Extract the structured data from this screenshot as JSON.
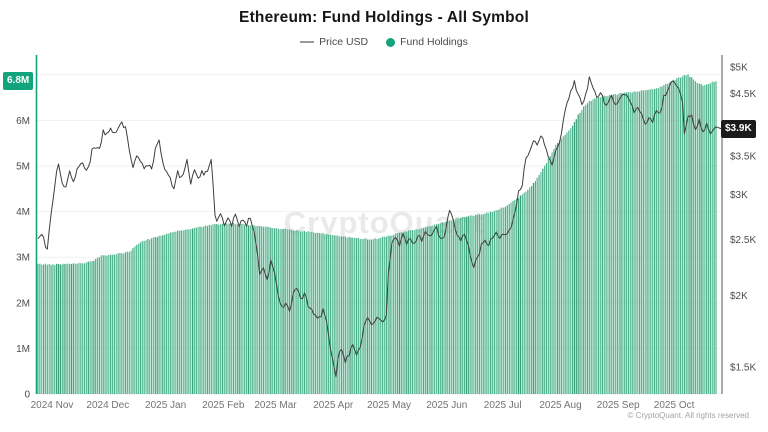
{
  "title": "Ethereum: Fund Holdings - All Symbol",
  "legend": [
    {
      "label": "Price USD",
      "type": "line",
      "color": "#999999"
    },
    {
      "label": "Fund Holdings",
      "type": "dot",
      "color": "#12a57c"
    }
  ],
  "watermark": "CryptoQuant",
  "attribution": "© CryptoQuant. All rights reserved",
  "badges": {
    "holdings": {
      "text": "6.8M",
      "color": "#12a57c"
    },
    "price": {
      "text": "$3.9K",
      "color": "#1b1b1b"
    }
  },
  "chart_data": {
    "type": "combo",
    "title": "Ethereum: Fund Holdings - All Symbol",
    "days": 365,
    "x_labels": [
      {
        "label": "2024 Nov",
        "start_day": 0
      },
      {
        "label": "2024 Dec",
        "start_day": 30
      },
      {
        "label": "2025 Jan",
        "start_day": 61
      },
      {
        "label": "2025 Feb",
        "start_day": 92
      },
      {
        "label": "2025 Mar",
        "start_day": 120
      },
      {
        "label": "2025 Apr",
        "start_day": 151
      },
      {
        "label": "2025 May",
        "start_day": 181
      },
      {
        "label": "2025 Jun",
        "start_day": 212
      },
      {
        "label": "2025 Jul",
        "start_day": 242
      },
      {
        "label": "2025 Aug",
        "start_day": 273
      },
      {
        "label": "2025 Sep",
        "start_day": 304
      },
      {
        "label": "2025 Oct",
        "start_day": 334
      }
    ],
    "left_axis": {
      "name": "Fund Holdings (ETH)",
      "scale": "linear",
      "unit": "M",
      "ticks": [
        {
          "label": "6M",
          "value": 6
        },
        {
          "label": "5M",
          "value": 5
        },
        {
          "label": "4M",
          "value": 4
        },
        {
          "label": "3M",
          "value": 3
        },
        {
          "label": "2M",
          "value": 2
        },
        {
          "label": "1M",
          "value": 1
        },
        {
          "label": "0",
          "value": 0
        }
      ],
      "gridline_values": [
        7,
        6,
        5,
        4,
        3,
        2,
        1,
        0
      ],
      "range": [
        0,
        7.4
      ]
    },
    "right_axis": {
      "name": "Price USD",
      "scale": "log",
      "unit": "$K",
      "ticks": [
        {
          "label": "$5K",
          "k": 5
        },
        {
          "label": "$4.5K",
          "k": 4.5
        },
        {
          "label": "$3.5K",
          "k": 3.5
        },
        {
          "label": "$3K",
          "k": 3
        },
        {
          "label": "$2.5K",
          "k": 2.5
        },
        {
          "label": "$2K",
          "k": 2
        },
        {
          "label": "$1.5K",
          "k": 1.5
        }
      ],
      "range_k": [
        1.38,
        5.4
      ]
    },
    "series": [
      {
        "name": "Fund Holdings",
        "type": "bar",
        "axis": "left",
        "unit": "M ETH",
        "color": "#56b793",
        "current": "6.8M",
        "points": [
          [
            0,
            2.85
          ],
          [
            8,
            2.84
          ],
          [
            16,
            2.86
          ],
          [
            24,
            2.87
          ],
          [
            29,
            2.9
          ],
          [
            31,
            2.97
          ],
          [
            34,
            3.03
          ],
          [
            38,
            3.05
          ],
          [
            42,
            3.07
          ],
          [
            46,
            3.09
          ],
          [
            50,
            3.14
          ],
          [
            53,
            3.28
          ],
          [
            56,
            3.35
          ],
          [
            60,
            3.4
          ],
          [
            64,
            3.45
          ],
          [
            68,
            3.5
          ],
          [
            72,
            3.55
          ],
          [
            76,
            3.58
          ],
          [
            80,
            3.61
          ],
          [
            84,
            3.64
          ],
          [
            88,
            3.67
          ],
          [
            92,
            3.7
          ],
          [
            96,
            3.72
          ],
          [
            100,
            3.73
          ],
          [
            105,
            3.74
          ],
          [
            110,
            3.72
          ],
          [
            115,
            3.7
          ],
          [
            120,
            3.68
          ],
          [
            126,
            3.65
          ],
          [
            132,
            3.62
          ],
          [
            138,
            3.59
          ],
          [
            144,
            3.56
          ],
          [
            150,
            3.53
          ],
          [
            156,
            3.5
          ],
          [
            162,
            3.46
          ],
          [
            168,
            3.43
          ],
          [
            174,
            3.41
          ],
          [
            180,
            3.39
          ],
          [
            184,
            3.43
          ],
          [
            188,
            3.47
          ],
          [
            193,
            3.52
          ],
          [
            198,
            3.57
          ],
          [
            203,
            3.61
          ],
          [
            208,
            3.65
          ],
          [
            213,
            3.71
          ],
          [
            218,
            3.77
          ],
          [
            223,
            3.83
          ],
          [
            228,
            3.87
          ],
          [
            233,
            3.91
          ],
          [
            238,
            3.95
          ],
          [
            243,
            3.99
          ],
          [
            248,
            4.06
          ],
          [
            252,
            4.14
          ],
          [
            256,
            4.24
          ],
          [
            260,
            4.37
          ],
          [
            263,
            4.48
          ],
          [
            266,
            4.62
          ],
          [
            269,
            4.8
          ],
          [
            272,
            5.0
          ],
          [
            275,
            5.22
          ],
          [
            278,
            5.45
          ],
          [
            281,
            5.6
          ],
          [
            284,
            5.72
          ],
          [
            287,
            5.88
          ],
          [
            290,
            6.12
          ],
          [
            293,
            6.3
          ],
          [
            296,
            6.42
          ],
          [
            300,
            6.5
          ],
          [
            304,
            6.53
          ],
          [
            309,
            6.56
          ],
          [
            314,
            6.59
          ],
          [
            319,
            6.62
          ],
          [
            324,
            6.65
          ],
          [
            329,
            6.68
          ],
          [
            333,
            6.72
          ],
          [
            337,
            6.79
          ],
          [
            341,
            6.88
          ],
          [
            344,
            6.93
          ],
          [
            347,
            6.98
          ],
          [
            349,
            7.0
          ],
          [
            351,
            6.93
          ],
          [
            354,
            6.82
          ],
          [
            357,
            6.77
          ],
          [
            360,
            6.8
          ],
          [
            362,
            6.84
          ],
          [
            364,
            6.86
          ]
        ]
      },
      {
        "name": "Price USD",
        "type": "line",
        "axis": "right",
        "unit": "$K",
        "color": "#3f3f3f",
        "current": "$3.9K",
        "points": [
          [
            0,
            2.5
          ],
          [
            2,
            2.56
          ],
          [
            4,
            2.44
          ],
          [
            5,
            2.41
          ],
          [
            6,
            2.62
          ],
          [
            8,
            2.95
          ],
          [
            10,
            3.3
          ],
          [
            11,
            3.37
          ],
          [
            13,
            3.14
          ],
          [
            15,
            3.06
          ],
          [
            17,
            3.3
          ],
          [
            19,
            3.14
          ],
          [
            21,
            3.32
          ],
          [
            23,
            3.42
          ],
          [
            25,
            3.34
          ],
          [
            27,
            3.32
          ],
          [
            29,
            3.58
          ],
          [
            31,
            3.64
          ],
          [
            33,
            3.58
          ],
          [
            35,
            3.86
          ],
          [
            37,
            3.8
          ],
          [
            39,
            3.92
          ],
          [
            41,
            3.85
          ],
          [
            43,
            3.92
          ],
          [
            45,
            4.02
          ],
          [
            47,
            3.9
          ],
          [
            49,
            3.6
          ],
          [
            51,
            3.36
          ],
          [
            53,
            3.48
          ],
          [
            55,
            3.4
          ],
          [
            57,
            3.34
          ],
          [
            59,
            3.36
          ],
          [
            61,
            3.34
          ],
          [
            63,
            3.58
          ],
          [
            65,
            3.7
          ],
          [
            67,
            3.44
          ],
          [
            69,
            3.26
          ],
          [
            71,
            3.2
          ],
          [
            73,
            3.06
          ],
          [
            75,
            3.28
          ],
          [
            77,
            3.2
          ],
          [
            79,
            3.34
          ],
          [
            80,
            3.46
          ],
          [
            82,
            3.14
          ],
          [
            84,
            3.28
          ],
          [
            86,
            3.22
          ],
          [
            88,
            3.28
          ],
          [
            90,
            3.26
          ],
          [
            92,
            3.34
          ],
          [
            93,
            3.42
          ],
          [
            94,
            3.1
          ],
          [
            95,
            2.78
          ],
          [
            96,
            2.7
          ],
          [
            98,
            2.8
          ],
          [
            100,
            2.64
          ],
          [
            102,
            2.72
          ],
          [
            104,
            2.66
          ],
          [
            106,
            2.76
          ],
          [
            108,
            2.64
          ],
          [
            110,
            2.72
          ],
          [
            112,
            2.66
          ],
          [
            114,
            2.74
          ],
          [
            116,
            2.58
          ],
          [
            118,
            2.34
          ],
          [
            119,
            2.18
          ],
          [
            121,
            2.24
          ],
          [
            123,
            2.12
          ],
          [
            125,
            2.3
          ],
          [
            127,
            2.18
          ],
          [
            129,
            1.98
          ],
          [
            131,
            1.9
          ],
          [
            133,
            1.94
          ],
          [
            135,
            1.88
          ],
          [
            137,
            2.0
          ],
          [
            139,
            2.06
          ],
          [
            141,
            1.96
          ],
          [
            143,
            2.02
          ],
          [
            145,
            1.92
          ],
          [
            147,
            1.88
          ],
          [
            149,
            1.84
          ],
          [
            151,
            1.82
          ],
          [
            153,
            1.88
          ],
          [
            155,
            1.8
          ],
          [
            157,
            1.62
          ],
          [
            159,
            1.5
          ],
          [
            160,
            1.45
          ],
          [
            161,
            1.56
          ],
          [
            163,
            1.62
          ],
          [
            165,
            1.54
          ],
          [
            167,
            1.58
          ],
          [
            169,
            1.64
          ],
          [
            171,
            1.58
          ],
          [
            173,
            1.62
          ],
          [
            175,
            1.76
          ],
          [
            177,
            1.82
          ],
          [
            179,
            1.78
          ],
          [
            181,
            1.8
          ],
          [
            183,
            1.83
          ],
          [
            185,
            1.8
          ],
          [
            187,
            1.84
          ],
          [
            188,
            2.18
          ],
          [
            189,
            2.32
          ],
          [
            190,
            2.46
          ],
          [
            192,
            2.52
          ],
          [
            194,
            2.42
          ],
          [
            196,
            2.56
          ],
          [
            198,
            2.46
          ],
          [
            200,
            2.52
          ],
          [
            202,
            2.46
          ],
          [
            204,
            2.56
          ],
          [
            206,
            2.5
          ],
          [
            208,
            2.6
          ],
          [
            210,
            2.52
          ],
          [
            212,
            2.56
          ],
          [
            214,
            2.62
          ],
          [
            216,
            2.5
          ],
          [
            218,
            2.54
          ],
          [
            220,
            2.72
          ],
          [
            221,
            2.8
          ],
          [
            223,
            2.7
          ],
          [
            225,
            2.54
          ],
          [
            227,
            2.5
          ],
          [
            229,
            2.54
          ],
          [
            231,
            2.44
          ],
          [
            233,
            2.26
          ],
          [
            234,
            2.24
          ],
          [
            236,
            2.32
          ],
          [
            238,
            2.44
          ],
          [
            240,
            2.48
          ],
          [
            242,
            2.46
          ],
          [
            244,
            2.52
          ],
          [
            246,
            2.56
          ],
          [
            248,
            2.52
          ],
          [
            250,
            2.58
          ],
          [
            252,
            2.54
          ],
          [
            254,
            2.62
          ],
          [
            256,
            2.8
          ],
          [
            258,
            3.02
          ],
          [
            260,
            3.12
          ],
          [
            262,
            3.46
          ],
          [
            264,
            3.58
          ],
          [
            266,
            3.74
          ],
          [
            268,
            3.62
          ],
          [
            270,
            3.8
          ],
          [
            272,
            3.68
          ],
          [
            274,
            3.48
          ],
          [
            276,
            3.38
          ],
          [
            278,
            3.58
          ],
          [
            280,
            3.68
          ],
          [
            282,
            4.02
          ],
          [
            284,
            4.32
          ],
          [
            286,
            4.56
          ],
          [
            288,
            4.7
          ],
          [
            290,
            4.48
          ],
          [
            292,
            4.32
          ],
          [
            294,
            4.48
          ],
          [
            296,
            4.78
          ],
          [
            298,
            4.62
          ],
          [
            300,
            4.42
          ],
          [
            302,
            4.48
          ],
          [
            304,
            4.36
          ],
          [
            306,
            4.3
          ],
          [
            308,
            4.46
          ],
          [
            310,
            4.32
          ],
          [
            312,
            4.36
          ],
          [
            314,
            4.52
          ],
          [
            316,
            4.46
          ],
          [
            318,
            4.32
          ],
          [
            320,
            4.16
          ],
          [
            322,
            4.22
          ],
          [
            324,
            4.12
          ],
          [
            326,
            4.0
          ],
          [
            328,
            4.08
          ],
          [
            330,
            4.02
          ],
          [
            332,
            4.16
          ],
          [
            334,
            4.12
          ],
          [
            336,
            4.44
          ],
          [
            338,
            4.56
          ],
          [
            340,
            4.7
          ],
          [
            342,
            4.66
          ],
          [
            344,
            4.56
          ],
          [
            346,
            4.32
          ],
          [
            347,
            3.8
          ],
          [
            348,
            3.95
          ],
          [
            349,
            4.08
          ],
          [
            351,
            4.12
          ],
          [
            353,
            3.9
          ],
          [
            355,
            4.04
          ],
          [
            357,
            3.84
          ],
          [
            359,
            3.97
          ],
          [
            361,
            3.86
          ],
          [
            363,
            3.93
          ],
          [
            364,
            3.9
          ]
        ]
      }
    ]
  }
}
